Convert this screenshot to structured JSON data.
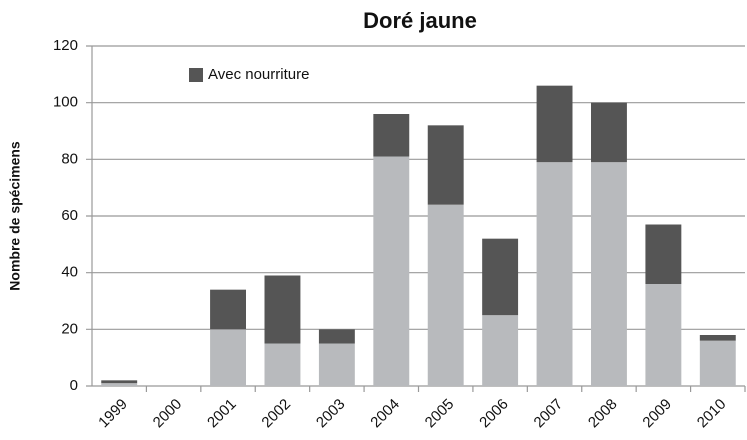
{
  "chart_data": {
    "type": "stacked_bar",
    "title": "Doré jaune",
    "y_label": "Nombre de spécimens",
    "categories": [
      "1999",
      "2000",
      "2001",
      "2002",
      "2003",
      "2004",
      "2005",
      "2006",
      "2007",
      "2008",
      "2009",
      "2010"
    ],
    "series": [
      {
        "color": "#b8babd",
        "values": [
          1,
          0,
          20,
          15,
          15,
          81,
          64,
          25,
          79,
          79,
          36,
          16
        ]
      },
      {
        "name": "Avec nourriture",
        "color": "#555555",
        "values": [
          1,
          0,
          14,
          24,
          5,
          15,
          28,
          27,
          27,
          21,
          21,
          2
        ]
      }
    ],
    "ylim": [
      0,
      120
    ],
    "yticks": [
      0,
      20,
      40,
      60,
      80,
      100,
      120
    ],
    "grid": true,
    "legend": "top-left"
  }
}
